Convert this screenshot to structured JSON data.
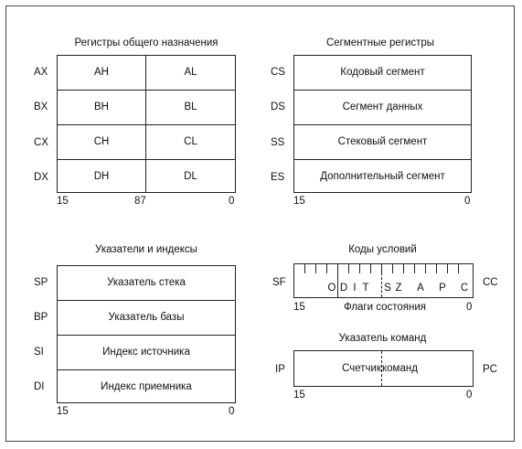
{
  "gp": {
    "title": "Регистры общего назначения",
    "rows": [
      {
        "name": "AX",
        "hi": "AH",
        "lo": "AL"
      },
      {
        "name": "BX",
        "hi": "BH",
        "lo": "BL"
      },
      {
        "name": "CX",
        "hi": "CH",
        "lo": "CL"
      },
      {
        "name": "DX",
        "hi": "DH",
        "lo": "DL"
      }
    ],
    "scale": {
      "left": "15",
      "mid": "87",
      "right": "0"
    }
  },
  "seg": {
    "title": "Сегментные регистры",
    "rows": [
      {
        "name": "CS",
        "label": "Кодовый сегмент"
      },
      {
        "name": "DS",
        "label": "Сегмент данных"
      },
      {
        "name": "SS",
        "label": "Стековый сегмент"
      },
      {
        "name": "ES",
        "label": "Дополнительный сегмент"
      }
    ],
    "scale": {
      "left": "15",
      "right": "0"
    }
  },
  "ptr": {
    "title": "Указатели и индексы",
    "rows": [
      {
        "name": "SP",
        "label": "Указатель стека"
      },
      {
        "name": "BP",
        "label": "Указатель базы"
      },
      {
        "name": "SI",
        "label": "Индекс источника"
      },
      {
        "name": "DI",
        "label": "Индекс приемника"
      }
    ],
    "scale": {
      "left": "15",
      "right": "0"
    }
  },
  "flags": {
    "title": "Коды условий",
    "left": "SF",
    "right": "CC",
    "letters": [
      "O",
      "D",
      "I",
      "T",
      "S",
      "Z",
      "A",
      "P",
      "C"
    ],
    "caption": "Флаги состояния",
    "scale": {
      "left": "15",
      "right": "0"
    }
  },
  "ip": {
    "title": "Указатель команд",
    "left": "IP",
    "right": "PC",
    "label_a": "Счетчик",
    "label_b": "команд",
    "scale": {
      "left": "15",
      "right": "0"
    }
  }
}
